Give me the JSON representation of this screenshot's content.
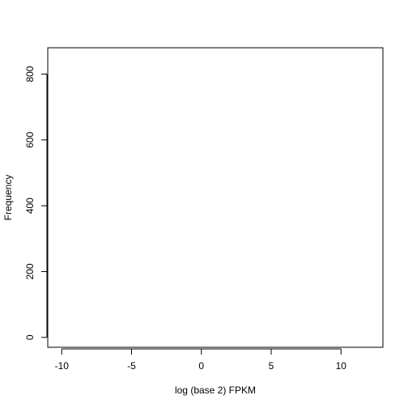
{
  "chart_data": {
    "type": "bar",
    "title": "",
    "xlabel": "log (base 2) FPKM",
    "ylabel": "Frequency",
    "xlim": [
      -11,
      13
    ],
    "ylim": [
      -30,
      880
    ],
    "xticks": [
      -10,
      -5,
      0,
      5,
      10
    ],
    "xtick_labels": [
      "-10",
      "-5",
      "0",
      "5",
      "10"
    ],
    "yticks": [
      0,
      200,
      400,
      600,
      800
    ],
    "ytick_labels": [
      "0",
      "200",
      "400",
      "600",
      "800"
    ],
    "grid": false,
    "series": [
      {
        "name": "histogram",
        "bins": [],
        "counts": []
      }
    ],
    "colors": {
      "axis": "#000000",
      "background": "#ffffff"
    }
  }
}
